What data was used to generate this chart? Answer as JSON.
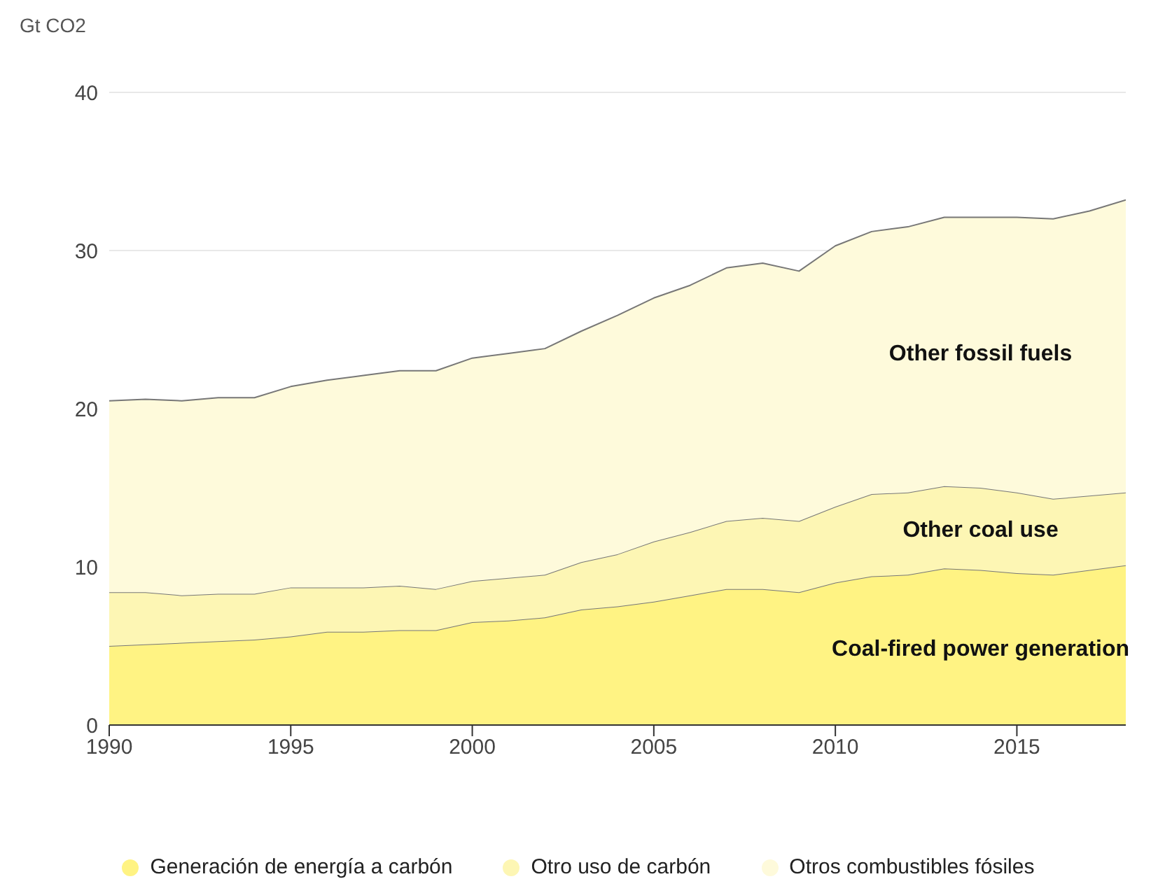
{
  "chart_data": {
    "type": "area",
    "stacked": true,
    "ylabel": "Gt CO2",
    "x": [
      1990,
      1991,
      1992,
      1993,
      1994,
      1995,
      1996,
      1997,
      1998,
      1999,
      2000,
      2001,
      2002,
      2003,
      2004,
      2005,
      2006,
      2007,
      2008,
      2009,
      2010,
      2011,
      2012,
      2013,
      2014,
      2015,
      2016,
      2017,
      2018
    ],
    "series": [
      {
        "name": "Generación de energía a carbón",
        "color": "#fff383",
        "values": [
          5.0,
          5.1,
          5.2,
          5.3,
          5.4,
          5.6,
          5.9,
          5.9,
          6.0,
          6.0,
          6.5,
          6.6,
          6.8,
          7.3,
          7.5,
          7.8,
          8.2,
          8.6,
          8.6,
          8.4,
          9.0,
          9.4,
          9.5,
          9.9,
          9.8,
          9.6,
          9.5,
          9.8,
          10.1
        ]
      },
      {
        "name": "Otro uso de carbón",
        "color": "#fdf6b4",
        "values": [
          3.4,
          3.3,
          3.0,
          3.0,
          2.9,
          3.1,
          2.8,
          2.8,
          2.8,
          2.6,
          2.6,
          2.7,
          2.7,
          3.0,
          3.3,
          3.8,
          4.0,
          4.3,
          4.5,
          4.5,
          4.8,
          5.2,
          5.2,
          5.2,
          5.2,
          5.1,
          4.8,
          4.7,
          4.6
        ]
      },
      {
        "name": "Otros combustibles fósiles",
        "color": "#fefadb",
        "values": [
          12.1,
          12.2,
          12.3,
          12.4,
          12.4,
          12.7,
          13.1,
          13.4,
          13.6,
          13.8,
          14.1,
          14.2,
          14.3,
          14.6,
          15.1,
          15.4,
          15.6,
          16.0,
          16.1,
          15.8,
          16.5,
          16.6,
          16.8,
          17.0,
          17.1,
          17.4,
          17.7,
          18.0,
          18.5
        ]
      }
    ],
    "xlim": [
      1990,
      2018
    ],
    "xticks": [
      1990,
      1995,
      2000,
      2005,
      2010,
      2015
    ],
    "ylim": [
      0,
      40
    ],
    "yticks": [
      0,
      10,
      20,
      30,
      40
    ],
    "grid": "y",
    "legend": "bottom",
    "annotations": [
      "Other fossil fuels",
      "Other coal use",
      "Coal-fired power generation"
    ]
  }
}
